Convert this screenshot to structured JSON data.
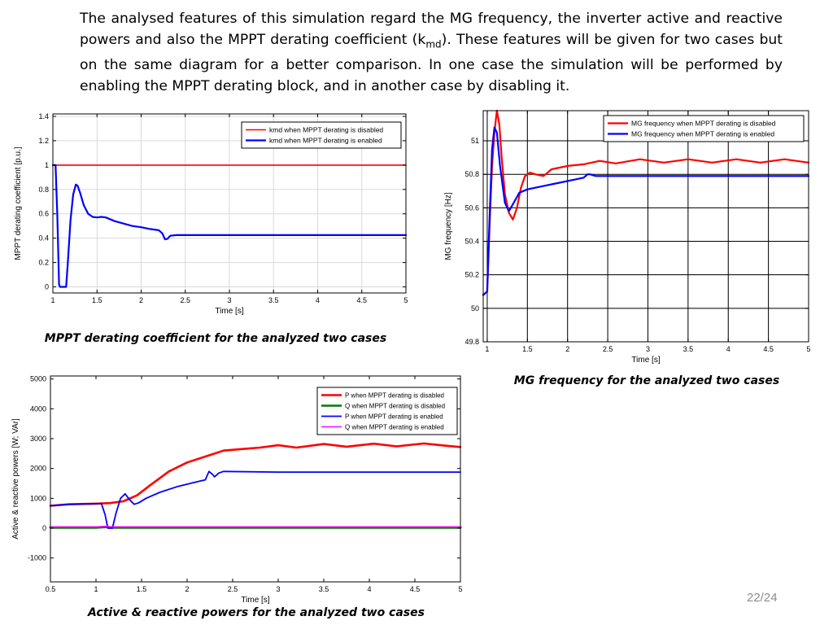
{
  "intro": {
    "text_before": "The analysed features of this simulation regard the MG frequency, the inverter active and reactive powers and also the MPPT derating coefficient (k",
    "subscript": "md",
    "text_after": "). These features will be given for two cases but on the same diagram for a better comparison. In one case the simulation will be performed by enabling the MPPT derating block, and in another case by disabling it."
  },
  "page_number": "22/24",
  "colors": {
    "disabled": "#ff0000",
    "enabled": "#0000ff",
    "q_disabled": "#007a00",
    "q_enabled": "#ff00ff",
    "grid": "#d9d9d9"
  },
  "chart_data": [
    {
      "id": "kmd",
      "type": "line",
      "caption": "MPPT derating coefficient for the analyzed two cases",
      "xlabel": "Time [s]",
      "ylabel": "MPPT derating coefficient [p.u.]",
      "xlim": [
        1,
        5
      ],
      "ylim": [
        -0.05,
        1.42
      ],
      "xticks": [
        1,
        1.5,
        2,
        2.5,
        3,
        3.5,
        4,
        4.5,
        5
      ],
      "yticks": [
        0,
        0.2,
        0.4,
        0.6,
        0.8,
        1,
        1.2,
        1.4
      ],
      "grid": true,
      "legend_position": "top-right",
      "series": [
        {
          "name": "kmd when MPPT derating is disabled",
          "color": "#ff0000",
          "width": 1.6,
          "points": [
            [
              1,
              1
            ],
            [
              5,
              1
            ]
          ]
        },
        {
          "name": "kmd when MPPT derating is enabled",
          "color": "#0000ff",
          "width": 2.2,
          "points": [
            [
              1,
              1
            ],
            [
              1.03,
              1
            ],
            [
              1.05,
              0.6
            ],
            [
              1.07,
              0.02
            ],
            [
              1.08,
              0
            ],
            [
              1.15,
              0
            ],
            [
              1.17,
              0.2
            ],
            [
              1.2,
              0.55
            ],
            [
              1.23,
              0.76
            ],
            [
              1.26,
              0.84
            ],
            [
              1.28,
              0.83
            ],
            [
              1.31,
              0.77
            ],
            [
              1.35,
              0.67
            ],
            [
              1.4,
              0.6
            ],
            [
              1.45,
              0.575
            ],
            [
              1.5,
              0.57
            ],
            [
              1.55,
              0.575
            ],
            [
              1.6,
              0.57
            ],
            [
              1.7,
              0.54
            ],
            [
              1.8,
              0.52
            ],
            [
              1.9,
              0.5
            ],
            [
              2.0,
              0.49
            ],
            [
              2.1,
              0.475
            ],
            [
              2.2,
              0.465
            ],
            [
              2.24,
              0.44
            ],
            [
              2.27,
              0.39
            ],
            [
              2.3,
              0.395
            ],
            [
              2.33,
              0.42
            ],
            [
              2.4,
              0.425
            ],
            [
              3,
              0.425
            ],
            [
              4,
              0.425
            ],
            [
              5,
              0.425
            ]
          ]
        }
      ]
    },
    {
      "id": "freq",
      "type": "line",
      "caption": "MG frequency for the analyzed two cases",
      "xlabel": "Time [s]",
      "ylabel": "MG frequency [Hz]",
      "xlim": [
        0.95,
        5
      ],
      "ylim": [
        49.8,
        51.18
      ],
      "xticks": [
        1,
        1.5,
        2,
        2.5,
        3,
        3.5,
        4,
        4.5,
        5
      ],
      "yticks": [
        49.8,
        50,
        50.2,
        50.4,
        50.6,
        50.8,
        51
      ],
      "grid": true,
      "legend_position": "top-right",
      "series": [
        {
          "name": "MG frequency when MPPT derating is disabled",
          "color": "#ff0000",
          "width": 2.2,
          "points": [
            [
              0.95,
              50.08
            ],
            [
              1.0,
              50.1
            ],
            [
              1.03,
              50.5
            ],
            [
              1.06,
              50.85
            ],
            [
              1.09,
              51.05
            ],
            [
              1.12,
              51.18
            ],
            [
              1.15,
              51.1
            ],
            [
              1.18,
              50.9
            ],
            [
              1.22,
              50.68
            ],
            [
              1.27,
              50.57
            ],
            [
              1.32,
              50.53
            ],
            [
              1.37,
              50.6
            ],
            [
              1.42,
              50.72
            ],
            [
              1.47,
              50.79
            ],
            [
              1.53,
              50.81
            ],
            [
              1.6,
              50.8
            ],
            [
              1.7,
              50.79
            ],
            [
              1.8,
              50.83
            ],
            [
              1.9,
              50.84
            ],
            [
              2.0,
              50.85
            ],
            [
              2.2,
              50.86
            ],
            [
              2.4,
              50.88
            ],
            [
              2.6,
              50.865
            ],
            [
              2.9,
              50.89
            ],
            [
              3.2,
              50.87
            ],
            [
              3.5,
              50.89
            ],
            [
              3.8,
              50.87
            ],
            [
              4.1,
              50.89
            ],
            [
              4.4,
              50.87
            ],
            [
              4.7,
              50.89
            ],
            [
              5.0,
              50.87
            ]
          ]
        },
        {
          "name": "MG frequency when MPPT derating is enabled",
          "color": "#0000ff",
          "width": 2.2,
          "points": [
            [
              0.95,
              50.08
            ],
            [
              1.0,
              50.1
            ],
            [
              1.03,
              50.55
            ],
            [
              1.06,
              50.95
            ],
            [
              1.09,
              51.08
            ],
            [
              1.12,
              51.05
            ],
            [
              1.16,
              50.85
            ],
            [
              1.22,
              50.63
            ],
            [
              1.27,
              50.58
            ],
            [
              1.33,
              50.63
            ],
            [
              1.4,
              50.69
            ],
            [
              1.5,
              50.71
            ],
            [
              1.7,
              50.73
            ],
            [
              1.9,
              50.75
            ],
            [
              2.1,
              50.77
            ],
            [
              2.2,
              50.78
            ],
            [
              2.25,
              50.8
            ],
            [
              2.28,
              50.8
            ],
            [
              2.35,
              50.79
            ],
            [
              3,
              50.79
            ],
            [
              4,
              50.79
            ],
            [
              5,
              50.79
            ]
          ]
        }
      ]
    },
    {
      "id": "power",
      "type": "line",
      "caption": "Active & reactive powers for the analyzed two cases",
      "xlabel": "Time [s]",
      "ylabel": "Active & reactive powers [W; VAr]",
      "xlim": [
        0.5,
        5
      ],
      "ylim": [
        -1800,
        5100
      ],
      "xticks": [
        0.5,
        1,
        1.5,
        2,
        2.5,
        3,
        3.5,
        4,
        4.5,
        5
      ],
      "yticks": [
        -1000,
        0,
        1000,
        2000,
        3000,
        4000,
        5000
      ],
      "grid": false,
      "legend_position": "top-right",
      "series": [
        {
          "name": "P when MPPT derating is disabled",
          "color": "#ff0000",
          "width": 2.6,
          "points": [
            [
              0.5,
              750
            ],
            [
              0.7,
              800
            ],
            [
              1.0,
              820
            ],
            [
              1.15,
              840
            ],
            [
              1.3,
              900
            ],
            [
              1.45,
              1100
            ],
            [
              1.6,
              1450
            ],
            [
              1.8,
              1900
            ],
            [
              2.0,
              2200
            ],
            [
              2.2,
              2400
            ],
            [
              2.4,
              2600
            ],
            [
              2.6,
              2650
            ],
            [
              2.8,
              2700
            ],
            [
              3.0,
              2780
            ],
            [
              3.2,
              2700
            ],
            [
              3.5,
              2820
            ],
            [
              3.75,
              2730
            ],
            [
              4.05,
              2830
            ],
            [
              4.3,
              2740
            ],
            [
              4.6,
              2840
            ],
            [
              4.85,
              2760
            ],
            [
              5.0,
              2720
            ]
          ]
        },
        {
          "name": "Q when MPPT derating is disabled",
          "color": "#007a00",
          "width": 3,
          "points": [
            [
              0.5,
              20
            ],
            [
              1.0,
              20
            ],
            [
              1.1,
              40
            ],
            [
              1.2,
              20
            ],
            [
              5.0,
              20
            ]
          ]
        },
        {
          "name": "P when MPPT derating is enabled",
          "color": "#0000ff",
          "width": 1.8,
          "points": [
            [
              0.5,
              750
            ],
            [
              0.7,
              800
            ],
            [
              1.0,
              820
            ],
            [
              1.06,
              820
            ],
            [
              1.1,
              450
            ],
            [
              1.13,
              0
            ],
            [
              1.18,
              0
            ],
            [
              1.22,
              500
            ],
            [
              1.27,
              1000
            ],
            [
              1.32,
              1150
            ],
            [
              1.37,
              950
            ],
            [
              1.42,
              800
            ],
            [
              1.47,
              850
            ],
            [
              1.55,
              1000
            ],
            [
              1.7,
              1200
            ],
            [
              1.9,
              1400
            ],
            [
              2.1,
              1550
            ],
            [
              2.2,
              1620
            ],
            [
              2.24,
              1900
            ],
            [
              2.28,
              1800
            ],
            [
              2.3,
              1720
            ],
            [
              2.35,
              1850
            ],
            [
              2.4,
              1900
            ],
            [
              3.0,
              1880
            ],
            [
              4.0,
              1880
            ],
            [
              5.0,
              1880
            ]
          ]
        },
        {
          "name": "Q when MPPT derating is enabled",
          "color": "#ff00ff",
          "width": 1.6,
          "points": [
            [
              0.5,
              40
            ],
            [
              1.0,
              40
            ],
            [
              1.1,
              60
            ],
            [
              1.2,
              40
            ],
            [
              5.0,
              40
            ]
          ]
        }
      ]
    }
  ]
}
